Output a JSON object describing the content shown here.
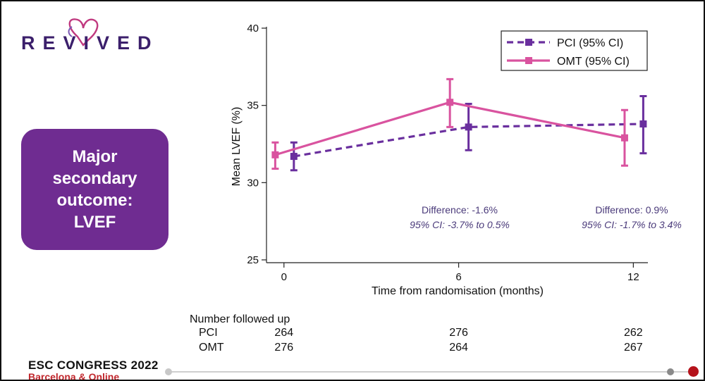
{
  "logo": {
    "text": "REVIVED",
    "colors": {
      "letters": "#3b1f6b",
      "heart": "#c0397f"
    }
  },
  "outcome_box": {
    "lines": [
      "Major",
      "secondary",
      "outcome:",
      "LVEF"
    ],
    "color": "#6f2c91"
  },
  "chart_data": {
    "type": "line",
    "ylabel": "Mean LVEF (%)",
    "xlabel": "Time from randomisation (months)",
    "x": [
      0,
      6,
      12
    ],
    "xticks": [
      "0",
      "6",
      "12"
    ],
    "yticks": [
      "25",
      "30",
      "35",
      "40"
    ],
    "ylim": [
      25,
      40
    ],
    "xlim": [
      -0.6,
      12.5
    ],
    "grid": false,
    "legend_position": "top-right",
    "series": [
      {
        "name": "PCI (95% CI)",
        "color": "#6a2f9e",
        "dashed": true,
        "values": [
          31.7,
          33.6,
          33.8
        ],
        "ci_low": [
          30.8,
          32.1,
          31.9
        ],
        "ci_high": [
          32.6,
          35.1,
          35.6
        ]
      },
      {
        "name": "OMT (95% CI)",
        "color": "#d9539f",
        "dashed": false,
        "values": [
          31.8,
          35.2,
          32.9
        ],
        "ci_low": [
          30.9,
          33.6,
          31.1
        ],
        "ci_high": [
          32.6,
          36.7,
          34.7
        ]
      }
    ],
    "annotations": [
      {
        "x": 6,
        "line1": "Difference: -1.6%",
        "line2": "95% CI: -3.7% to 0.5%"
      },
      {
        "x": 12,
        "line1": "Difference: 0.9%",
        "line2": "95% CI: -1.7% to 3.4%"
      }
    ],
    "followup": {
      "title": "Number followed up",
      "rows": [
        {
          "label": "PCI",
          "values": [
            "264",
            "276",
            "262"
          ]
        },
        {
          "label": "OMT",
          "values": [
            "276",
            "264",
            "267"
          ]
        }
      ]
    }
  },
  "footer": {
    "title": "ESC CONGRESS 2022",
    "subtitle": "Barcelona & Online",
    "accent": "#c1272d"
  }
}
